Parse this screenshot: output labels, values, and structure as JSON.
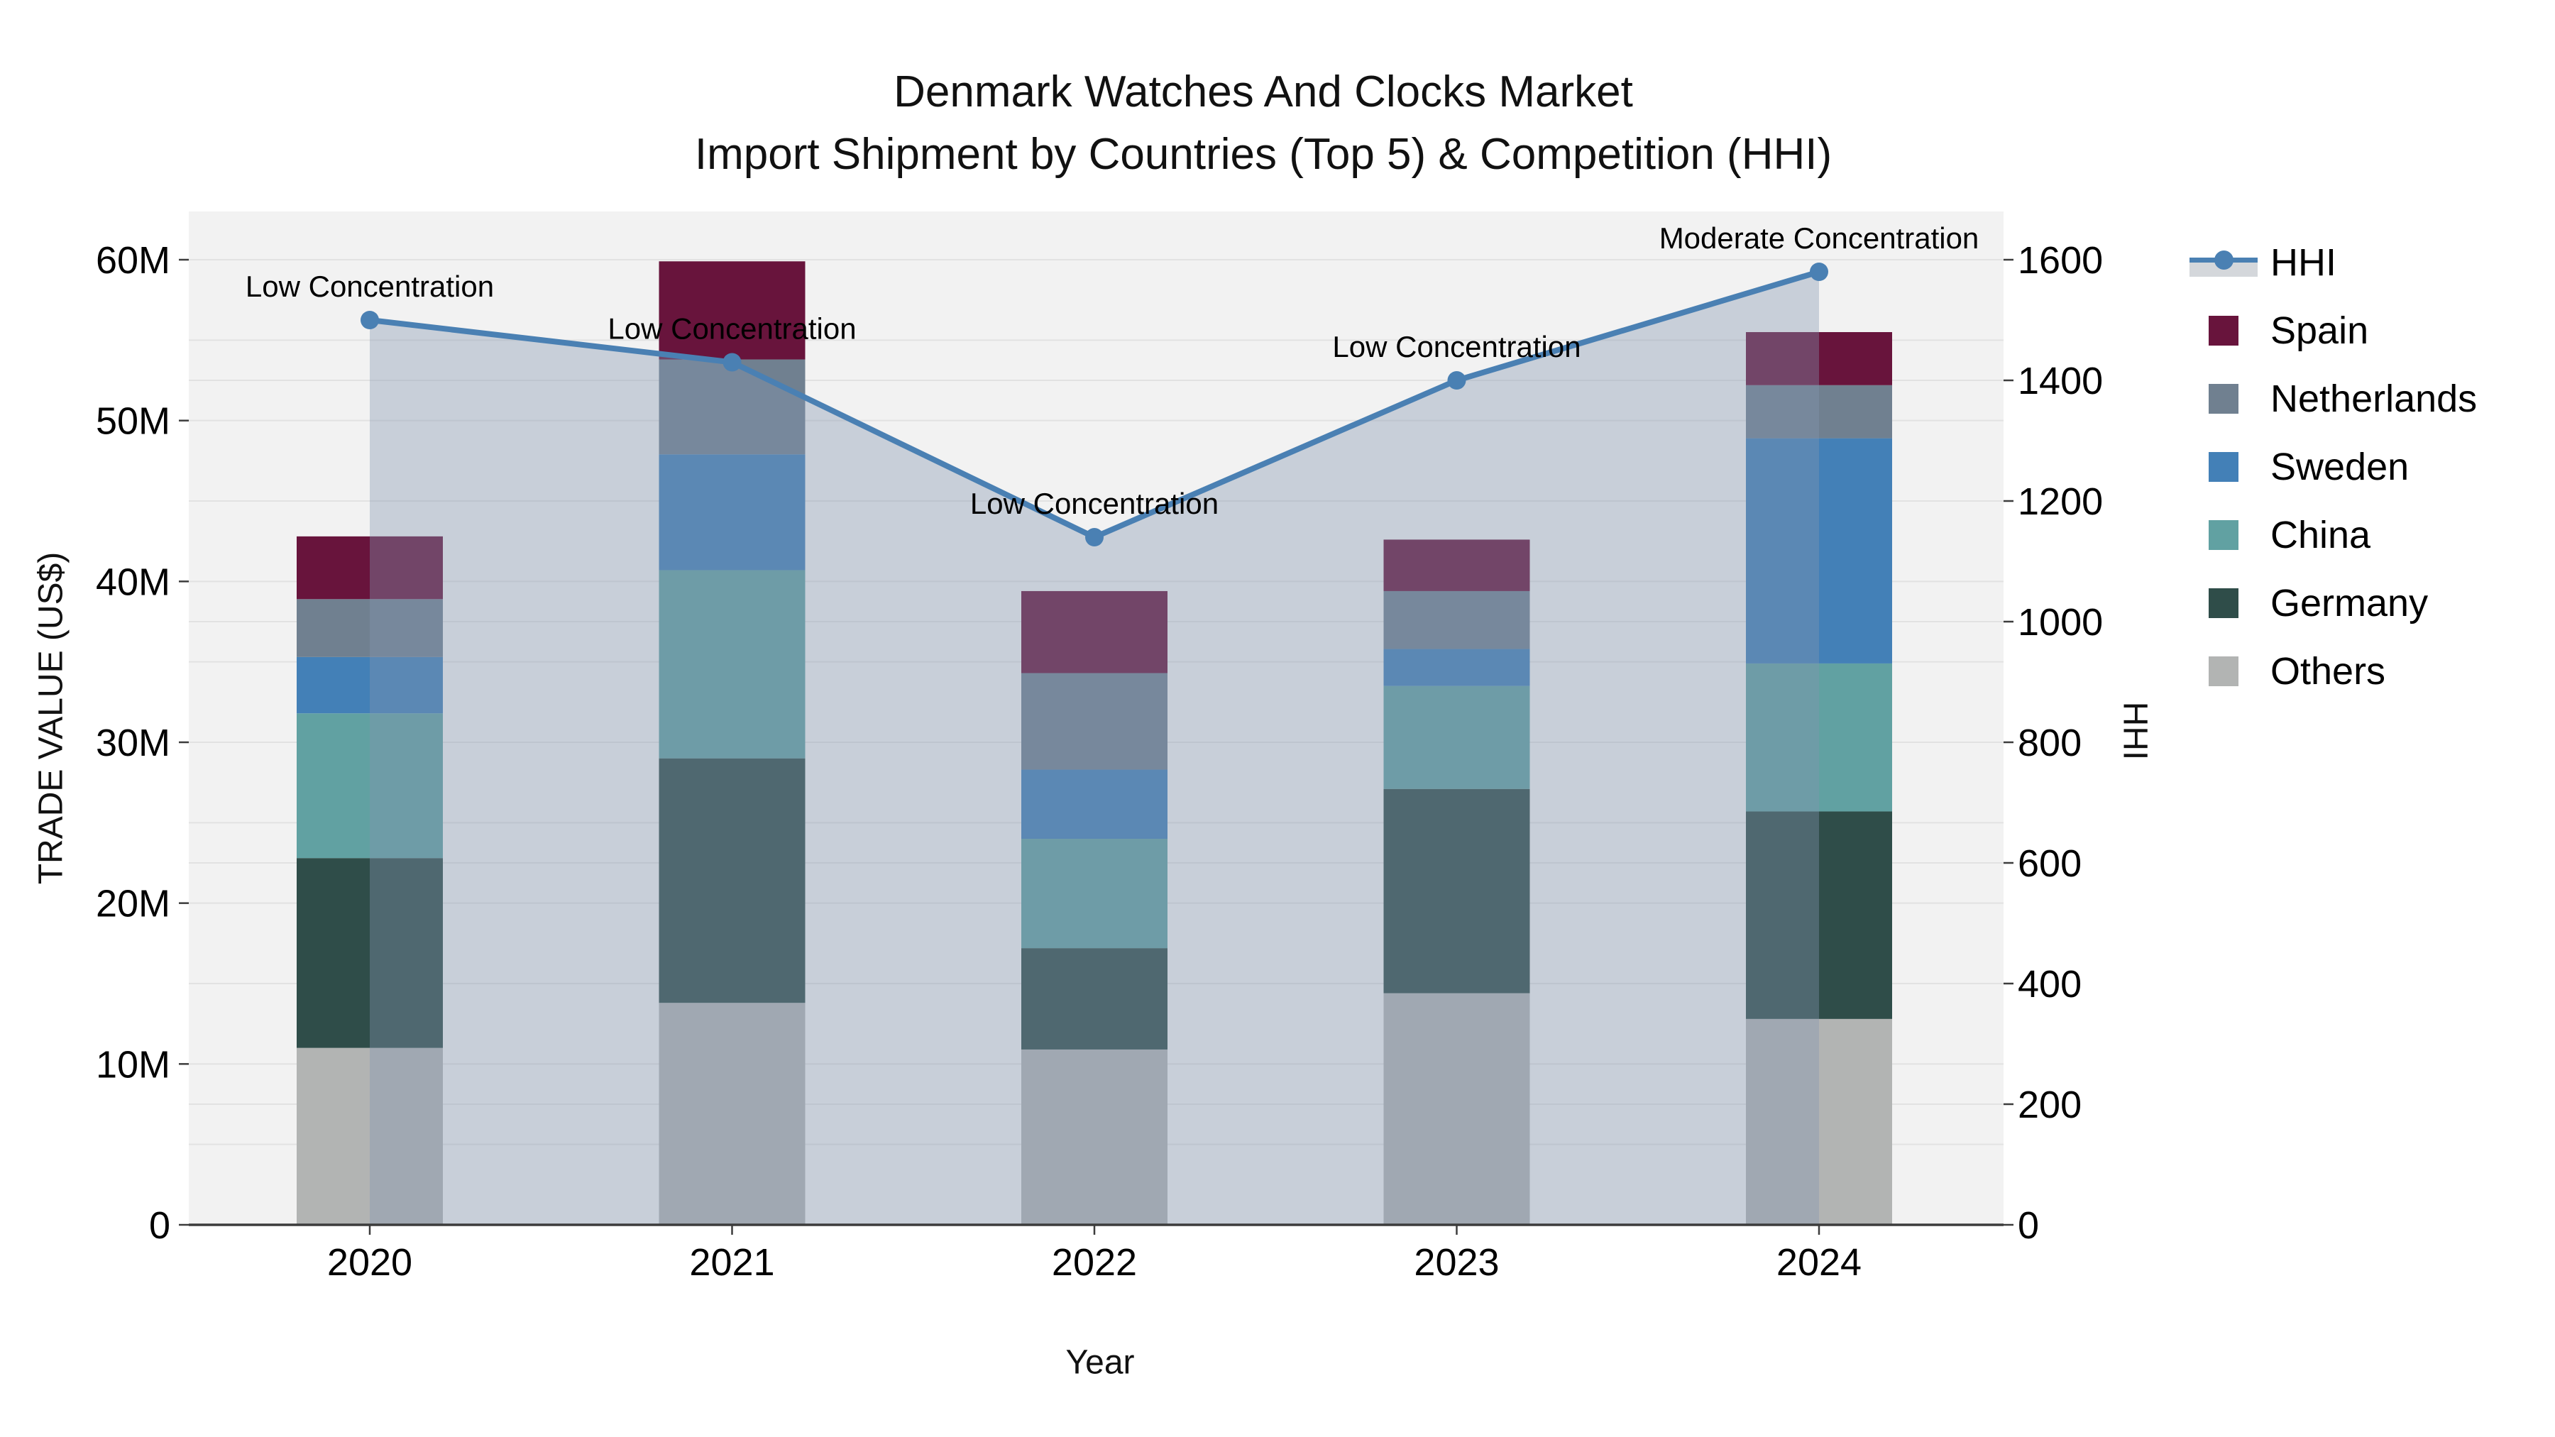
{
  "title": {
    "line1": "Denmark Watches And Clocks Market",
    "line2": "Import Shipment by Countries (Top 5) & Competition (HHI)"
  },
  "axes": {
    "x_title": "Year",
    "y_left_title": "TRADE VALUE (US$)",
    "y_right_title": "HHI",
    "y_left_tick_labels": [
      "0",
      "10M",
      "20M",
      "30M",
      "40M",
      "50M",
      "60M"
    ],
    "y_right_tick_labels": [
      "0",
      "200",
      "400",
      "600",
      "800",
      "1000",
      "1200",
      "1400",
      "1600"
    ]
  },
  "legend": {
    "items": [
      {
        "label": "HHI",
        "type": "line",
        "color": "#4a80b3"
      },
      {
        "label": "Spain",
        "type": "swatch",
        "color": "#68143c"
      },
      {
        "label": "Netherlands",
        "type": "swatch",
        "color": "#708090"
      },
      {
        "label": "Sweden",
        "type": "swatch",
        "color": "#4380b7"
      },
      {
        "label": "China",
        "type": "swatch",
        "color": "#61a1a2"
      },
      {
        "label": "Germany",
        "type": "swatch",
        "color": "#2f4d49"
      },
      {
        "label": "Others",
        "type": "swatch",
        "color": "#b2b4b3"
      }
    ]
  },
  "chart_data": {
    "type": "combo: stacked bar (left axis) + line with area fill (right axis)",
    "title": "Denmark Watches And Clocks Market — Import Shipment by Countries (Top 5) & Competition (HHI)",
    "categories": [
      "2020",
      "2021",
      "2022",
      "2023",
      "2024"
    ],
    "xlabel": "Year",
    "ylabel_left": "TRADE VALUE (US$)",
    "ylabel_right": "HHI",
    "y_left_unit": "million US$",
    "y_left_range": [
      0,
      60000000
    ],
    "y_right_range": [
      0,
      1600
    ],
    "grid": true,
    "legend_position": "right",
    "bar_series_bottom_to_top": [
      {
        "name": "Others",
        "color": "#b2b4b3",
        "values_musd": [
          11.0,
          13.8,
          10.9,
          14.4,
          12.8
        ]
      },
      {
        "name": "Germany",
        "color": "#2f4d49",
        "values_musd": [
          11.8,
          15.2,
          6.3,
          12.7,
          12.9
        ]
      },
      {
        "name": "China",
        "color": "#61a1a2",
        "values_musd": [
          9.0,
          11.7,
          6.8,
          6.4,
          9.2
        ]
      },
      {
        "name": "Sweden",
        "color": "#4380b7",
        "values_musd": [
          3.5,
          7.2,
          4.3,
          2.3,
          14.0
        ]
      },
      {
        "name": "Netherlands",
        "color": "#708090",
        "values_musd": [
          3.6,
          5.9,
          6.0,
          3.6,
          3.3
        ]
      },
      {
        "name": "Spain",
        "color": "#68143c",
        "values_musd": [
          3.9,
          6.1,
          5.1,
          3.2,
          3.3
        ]
      }
    ],
    "bar_totals_musd": [
      42.8,
      59.9,
      39.4,
      42.6,
      55.5
    ],
    "line_series": {
      "name": "HHI",
      "color": "#4a80b3",
      "values": [
        1500,
        1430,
        1140,
        1400,
        1580
      ],
      "area_fill_color": "#8496b0",
      "area_fill_alpha": 0.38,
      "area_span_categories": [
        "2020",
        "2024"
      ]
    },
    "annotations": [
      {
        "category": "2020",
        "label": "Low Concentration"
      },
      {
        "category": "2021",
        "label": "Low Concentration"
      },
      {
        "category": "2022",
        "label": "Low Concentration"
      },
      {
        "category": "2023",
        "label": "Low Concentration"
      },
      {
        "category": "2024",
        "label": "Moderate Concentration"
      }
    ],
    "style": {
      "plot_bg": "#f2f2f2",
      "gridline_color": "#e2e2e2",
      "spine_color": "#3c3c3c",
      "text_color": "#000000"
    }
  }
}
